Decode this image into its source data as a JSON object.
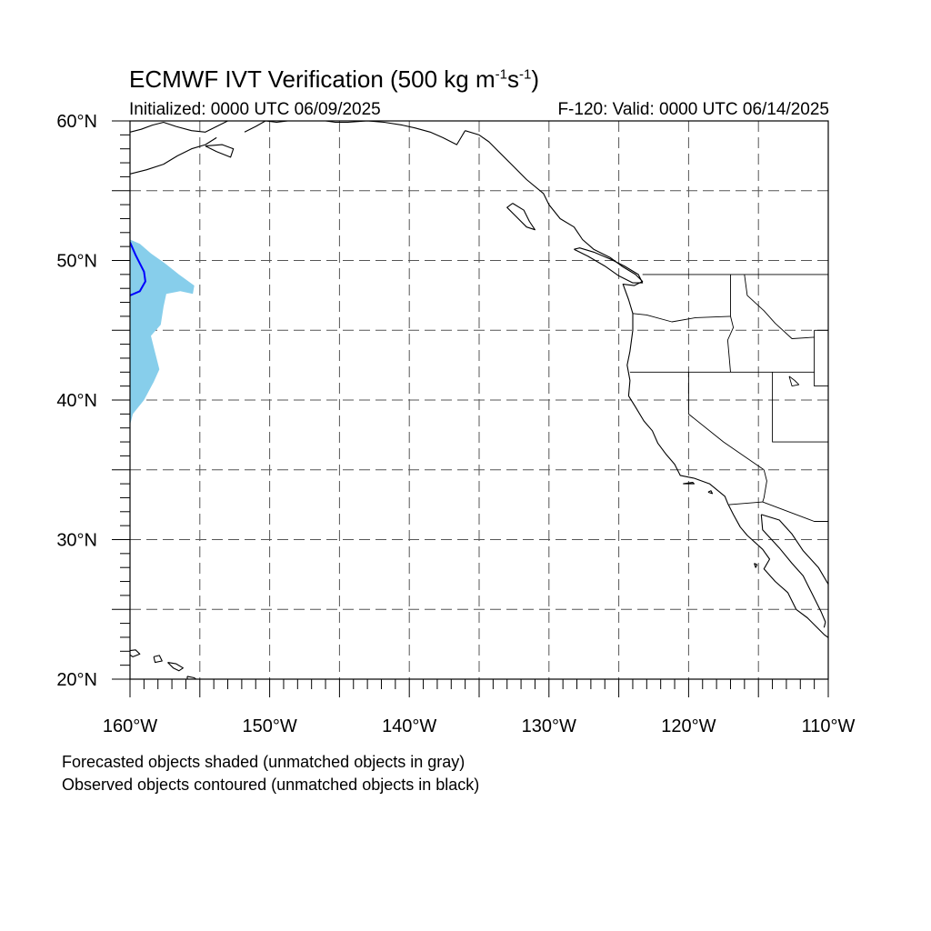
{
  "title": {
    "prefix": "ECMWF IVT Verification (500 kg m",
    "sup1": "-1",
    "mid": "s",
    "sup2": "-1",
    "suffix": ")"
  },
  "subtitle_left": "Initialized: 0000 UTC 06/09/2025",
  "subtitle_right": "F-120: Valid: 0000 UTC 06/14/2025",
  "notes": [
    "Forecasted objects shaded (unmatched objects in gray)",
    "Observed objects contoured (unmatched objects in black)"
  ],
  "map": {
    "lon_range": [
      -160,
      -110
    ],
    "lat_range": [
      20,
      60
    ],
    "lat_labels": [
      {
        "value": 60,
        "text": "60°N"
      },
      {
        "value": 50,
        "text": "50°N"
      },
      {
        "value": 40,
        "text": "40°N"
      },
      {
        "value": 30,
        "text": "30°N"
      },
      {
        "value": 20,
        "text": "20°N"
      }
    ],
    "lon_labels": [
      {
        "value": -160,
        "text": "160°W"
      },
      {
        "value": -150,
        "text": "150°W"
      },
      {
        "value": -140,
        "text": "140°W"
      },
      {
        "value": -130,
        "text": "130°W"
      },
      {
        "value": -120,
        "text": "120°W"
      },
      {
        "value": -110,
        "text": "110°W"
      }
    ],
    "grid_step_deg": 5,
    "colors": {
      "forecast_fill": "#87ceeb",
      "observed_contour": "#0000ff",
      "coast": "#000000",
      "grid": "#555555"
    },
    "forecast_object": [
      [
        -160,
        51.5
      ],
      [
        -159.3,
        51.2
      ],
      [
        -158.5,
        50.5
      ],
      [
        -157.5,
        49.8
      ],
      [
        -156.5,
        49.0
      ],
      [
        -155.4,
        48.2
      ],
      [
        -155.5,
        47.6
      ],
      [
        -156.4,
        47.8
      ],
      [
        -157.4,
        47.6
      ],
      [
        -157.6,
        46.7
      ],
      [
        -157.8,
        45.4
      ],
      [
        -158.5,
        44.6
      ],
      [
        -158.2,
        43.4
      ],
      [
        -157.9,
        42.2
      ],
      [
        -158.3,
        41.3
      ],
      [
        -159.0,
        40.0
      ],
      [
        -159.8,
        39.0
      ],
      [
        -160,
        38.2
      ]
    ],
    "observed_contour": [
      [
        -160,
        51.3
      ],
      [
        -159.6,
        50.4
      ],
      [
        -159.0,
        49.2
      ],
      [
        -158.9,
        48.5
      ],
      [
        -159.3,
        47.8
      ],
      [
        -160,
        47.5
      ]
    ]
  }
}
